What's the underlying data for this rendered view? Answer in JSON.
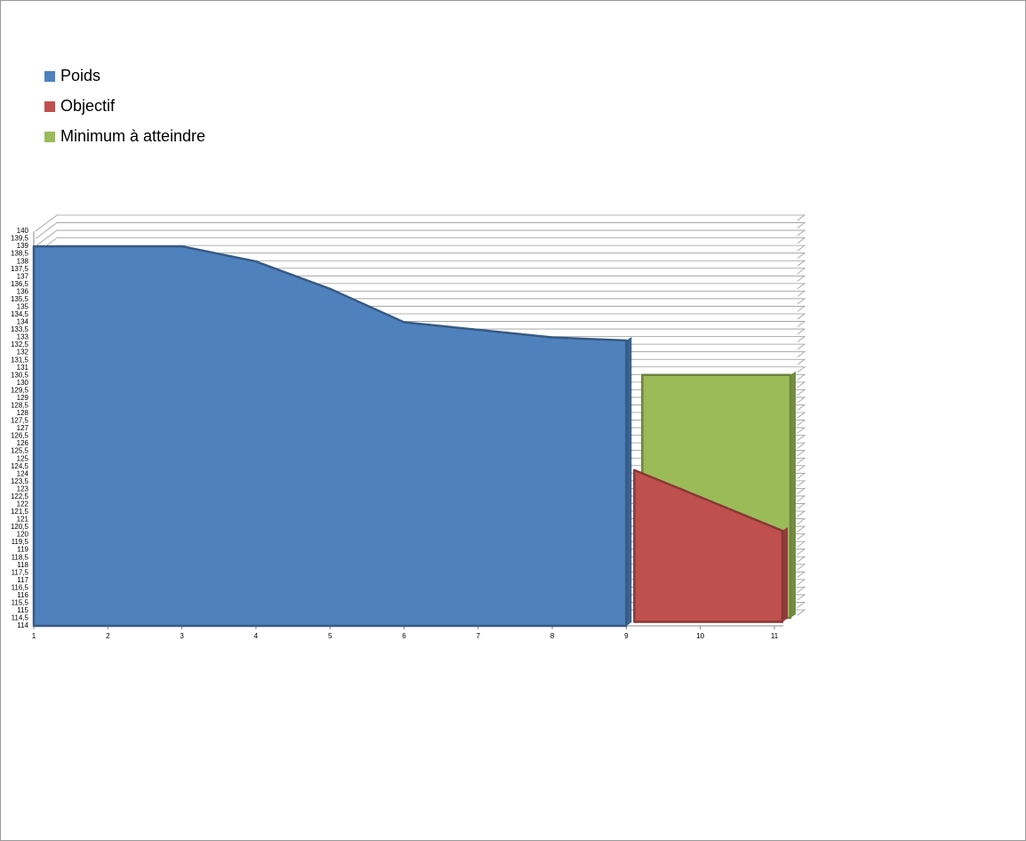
{
  "chart_data": {
    "type": "area",
    "categories": [
      "1",
      "2",
      "3",
      "4",
      "5",
      "6",
      "7",
      "8",
      "9",
      "10",
      "11"
    ],
    "series": [
      {
        "name": "Poids",
        "color": "#4f81bd",
        "values": [
          139,
          139,
          139,
          138,
          136.2,
          134,
          133.5,
          133,
          132.8,
          null,
          null
        ]
      },
      {
        "name": "Objectif",
        "color": "#c0504d",
        "values": [
          null,
          null,
          null,
          null,
          null,
          null,
          null,
          null,
          124,
          122,
          120
        ]
      },
      {
        "name": "Minimum à atteindre",
        "color": "#9bbb59",
        "values": [
          null,
          null,
          null,
          null,
          null,
          null,
          null,
          null,
          130,
          130,
          130
        ]
      }
    ],
    "ylim": [
      114,
      140
    ],
    "yticks": [
      114,
      {
        "value": 114.5,
        "label": "114,5"
      },
      115,
      {
        "value": 115.5,
        "label": "115,5"
      },
      116,
      {
        "value": 116.5,
        "label": "116,5"
      },
      117,
      {
        "value": 117.5,
        "label": "117,5"
      },
      118,
      {
        "value": 118.5,
        "label": "118,5"
      },
      119,
      {
        "value": 119.5,
        "label": "119,5"
      },
      120,
      {
        "value": 120.5,
        "label": "120,5"
      },
      121,
      {
        "value": 121.5,
        "label": "121,5"
      },
      122,
      {
        "value": 122.5,
        "label": "122,5"
      },
      123,
      {
        "value": 123.5,
        "label": "123,5"
      },
      124,
      {
        "value": 124.5,
        "label": "124,5"
      },
      125,
      {
        "value": 125.5,
        "label": "125,5"
      },
      126,
      {
        "value": 126.5,
        "label": "126,5"
      },
      127,
      {
        "value": 127.5,
        "label": "127,5"
      },
      128,
      {
        "value": 128.5,
        "label": "128,5"
      },
      129,
      {
        "value": 129.5,
        "label": "129,5"
      },
      130,
      {
        "value": 130.5,
        "label": "130,5"
      },
      131,
      {
        "value": 131.5,
        "label": "131,5"
      },
      132,
      {
        "value": 132.5,
        "label": "132,5"
      },
      133,
      {
        "value": 133.5,
        "label": "133,5"
      },
      134,
      {
        "value": 134.5,
        "label": "134,5"
      },
      135,
      {
        "value": 135.5,
        "label": "135,5"
      },
      136,
      {
        "value": 136.5,
        "label": "136,5"
      },
      137,
      {
        "value": 137.5,
        "label": "137,5"
      },
      138,
      {
        "value": 138.5,
        "label": "138,5"
      },
      139,
      {
        "value": 139.5,
        "label": "139,5"
      },
      140
    ],
    "grid": true,
    "legend": "top-left"
  }
}
